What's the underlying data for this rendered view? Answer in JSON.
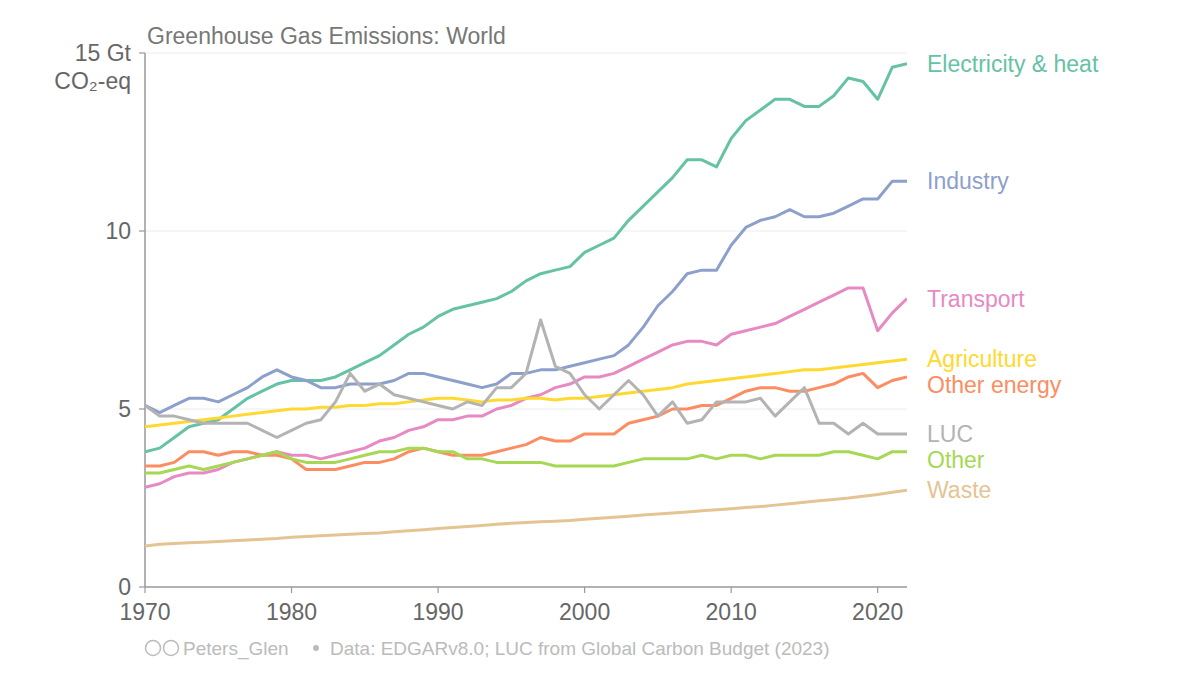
{
  "chart_data": {
    "type": "line",
    "title": "Greenhouse Gas Emissions: World",
    "y_label": "CO₂-eq",
    "credit": "Peters_Glen",
    "source": "Data: EDGARv8.0; LUC from Global Carbon Budget (2023)",
    "x": [
      1970,
      1971,
      1972,
      1973,
      1974,
      1975,
      1976,
      1977,
      1978,
      1979,
      1980,
      1981,
      1982,
      1983,
      1984,
      1985,
      1986,
      1987,
      1988,
      1989,
      1990,
      1991,
      1992,
      1993,
      1994,
      1995,
      1996,
      1997,
      1998,
      1999,
      2000,
      2001,
      2002,
      2003,
      2004,
      2005,
      2006,
      2007,
      2008,
      2009,
      2010,
      2011,
      2012,
      2013,
      2014,
      2015,
      2016,
      2017,
      2018,
      2019,
      2020,
      2021,
      2022
    ],
    "xlim": [
      1970,
      2022
    ],
    "xticks": [
      1970,
      1980,
      1990,
      2000,
      2010,
      2020
    ],
    "ylim": [
      0,
      15
    ],
    "yticks": [
      0,
      5,
      10,
      {
        "value": 15,
        "label": "15 Gt"
      }
    ],
    "grid": true,
    "series": [
      {
        "name": "Electricity & heat",
        "color": "#66c2a5",
        "values": [
          3.8,
          3.9,
          4.2,
          4.5,
          4.6,
          4.7,
          5.0,
          5.3,
          5.5,
          5.7,
          5.8,
          5.8,
          5.8,
          5.9,
          6.1,
          6.3,
          6.5,
          6.8,
          7.1,
          7.3,
          7.6,
          7.8,
          7.9,
          8.0,
          8.1,
          8.3,
          8.6,
          8.8,
          8.9,
          9.0,
          9.4,
          9.6,
          9.8,
          10.3,
          10.7,
          11.1,
          11.5,
          12.0,
          12.0,
          11.8,
          12.6,
          13.1,
          13.4,
          13.7,
          13.7,
          13.5,
          13.5,
          13.8,
          14.3,
          14.2,
          13.7,
          14.6,
          14.7
        ]
      },
      {
        "name": "Industry",
        "color": "#8da0cb",
        "values": [
          5.1,
          4.9,
          5.1,
          5.3,
          5.3,
          5.2,
          5.4,
          5.6,
          5.9,
          6.1,
          5.9,
          5.8,
          5.6,
          5.6,
          5.7,
          5.7,
          5.7,
          5.8,
          6.0,
          6.0,
          5.9,
          5.8,
          5.7,
          5.6,
          5.7,
          6.0,
          6.0,
          6.1,
          6.1,
          6.2,
          6.3,
          6.4,
          6.5,
          6.8,
          7.3,
          7.9,
          8.3,
          8.8,
          8.9,
          8.9,
          9.6,
          10.1,
          10.3,
          10.4,
          10.6,
          10.4,
          10.4,
          10.5,
          10.7,
          10.9,
          10.9,
          11.4,
          11.4
        ]
      },
      {
        "name": "Transport",
        "color": "#e78ac3",
        "values": [
          2.8,
          2.9,
          3.1,
          3.2,
          3.2,
          3.3,
          3.5,
          3.6,
          3.7,
          3.8,
          3.7,
          3.7,
          3.6,
          3.7,
          3.8,
          3.9,
          4.1,
          4.2,
          4.4,
          4.5,
          4.7,
          4.7,
          4.8,
          4.8,
          5.0,
          5.1,
          5.3,
          5.4,
          5.6,
          5.7,
          5.9,
          5.9,
          6.0,
          6.2,
          6.4,
          6.6,
          6.8,
          6.9,
          6.9,
          6.8,
          7.1,
          7.2,
          7.3,
          7.4,
          7.6,
          7.8,
          8.0,
          8.2,
          8.4,
          8.4,
          7.2,
          7.7,
          8.1
        ]
      },
      {
        "name": "Agriculture",
        "color": "#ffd92f",
        "values": [
          4.5,
          4.55,
          4.6,
          4.65,
          4.7,
          4.75,
          4.8,
          4.85,
          4.9,
          4.95,
          5.0,
          5.0,
          5.05,
          5.05,
          5.1,
          5.1,
          5.15,
          5.15,
          5.2,
          5.25,
          5.3,
          5.3,
          5.25,
          5.2,
          5.25,
          5.25,
          5.3,
          5.3,
          5.25,
          5.3,
          5.3,
          5.35,
          5.4,
          5.45,
          5.5,
          5.55,
          5.6,
          5.7,
          5.75,
          5.8,
          5.85,
          5.9,
          5.95,
          6.0,
          6.05,
          6.1,
          6.1,
          6.15,
          6.2,
          6.25,
          6.3,
          6.35,
          6.4
        ]
      },
      {
        "name": "Other energy",
        "color": "#fc8d62",
        "values": [
          3.4,
          3.4,
          3.5,
          3.8,
          3.8,
          3.7,
          3.8,
          3.8,
          3.7,
          3.7,
          3.6,
          3.3,
          3.3,
          3.3,
          3.4,
          3.5,
          3.5,
          3.6,
          3.8,
          3.9,
          3.8,
          3.7,
          3.7,
          3.7,
          3.8,
          3.9,
          4.0,
          4.2,
          4.1,
          4.1,
          4.3,
          4.3,
          4.3,
          4.6,
          4.7,
          4.8,
          5.0,
          5.0,
          5.1,
          5.1,
          5.3,
          5.5,
          5.6,
          5.6,
          5.5,
          5.5,
          5.6,
          5.7,
          5.9,
          6.0,
          5.6,
          5.8,
          5.9
        ]
      },
      {
        "name": "LUC",
        "color": "#b3b3b3",
        "values": [
          5.1,
          4.8,
          4.8,
          4.7,
          4.6,
          4.6,
          4.6,
          4.6,
          4.4,
          4.2,
          4.4,
          4.6,
          4.7,
          5.2,
          6.0,
          5.5,
          5.7,
          5.4,
          5.3,
          5.2,
          5.1,
          5.0,
          5.2,
          5.1,
          5.6,
          5.6,
          6.0,
          7.5,
          6.2,
          6.0,
          5.4,
          5.0,
          5.4,
          5.8,
          5.4,
          4.8,
          5.2,
          4.6,
          4.7,
          5.2,
          5.2,
          5.2,
          5.3,
          4.8,
          5.2,
          5.6,
          4.6,
          4.6,
          4.3,
          4.6,
          4.3,
          4.3,
          4.3
        ]
      },
      {
        "name": "Other",
        "color": "#a6d854",
        "values": [
          3.2,
          3.2,
          3.3,
          3.4,
          3.3,
          3.4,
          3.5,
          3.6,
          3.7,
          3.8,
          3.6,
          3.5,
          3.5,
          3.5,
          3.6,
          3.7,
          3.8,
          3.8,
          3.9,
          3.9,
          3.8,
          3.8,
          3.6,
          3.6,
          3.5,
          3.5,
          3.5,
          3.5,
          3.4,
          3.4,
          3.4,
          3.4,
          3.4,
          3.5,
          3.6,
          3.6,
          3.6,
          3.6,
          3.7,
          3.6,
          3.7,
          3.7,
          3.6,
          3.7,
          3.7,
          3.7,
          3.7,
          3.8,
          3.8,
          3.7,
          3.6,
          3.8,
          3.8
        ]
      },
      {
        "name": "Waste",
        "color": "#e5c494",
        "values": [
          1.15,
          1.2,
          1.22,
          1.24,
          1.26,
          1.28,
          1.3,
          1.32,
          1.34,
          1.36,
          1.4,
          1.42,
          1.44,
          1.46,
          1.48,
          1.5,
          1.52,
          1.55,
          1.58,
          1.61,
          1.64,
          1.67,
          1.7,
          1.73,
          1.76,
          1.79,
          1.81,
          1.83,
          1.85,
          1.87,
          1.9,
          1.93,
          1.96,
          1.99,
          2.02,
          2.05,
          2.08,
          2.11,
          2.14,
          2.17,
          2.2,
          2.23,
          2.26,
          2.3,
          2.34,
          2.38,
          2.42,
          2.46,
          2.5,
          2.55,
          2.6,
          2.66,
          2.72
        ]
      }
    ]
  }
}
